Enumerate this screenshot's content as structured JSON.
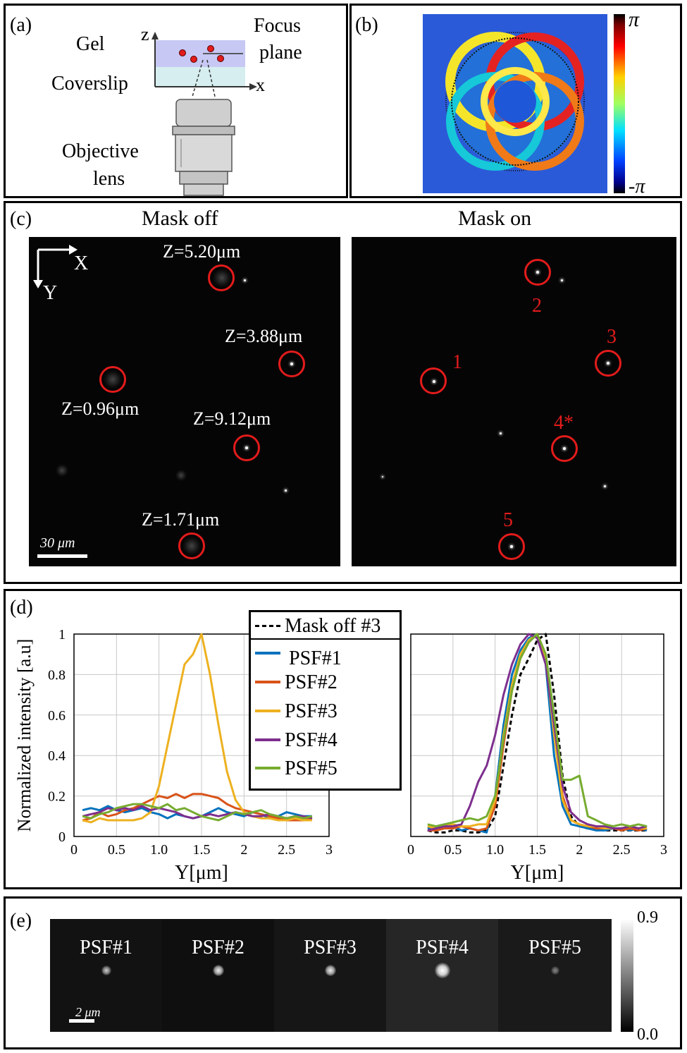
{
  "panels": {
    "a": {
      "label": "(a)",
      "gel": "Gel",
      "coverslip": "Coverslip",
      "objective_line1": "Objective",
      "objective_line2": "lens",
      "focus_line1": "Focus",
      "focus_line2": "plane",
      "axis_z": "z",
      "axis_x": "x"
    },
    "b": {
      "label": "(b)",
      "colorbar_max": "π",
      "colorbar_min": "-π"
    },
    "c": {
      "label": "(c)",
      "title_off": "Mask off",
      "title_on": "Mask on",
      "axis_x": "X",
      "axis_y": "Y",
      "scalebar": "30 μm",
      "depth_labels": [
        "Z=5.20μm",
        "Z=3.88μm",
        "Z=0.96μm",
        "Z=9.12μm",
        "Z=1.71μm"
      ],
      "psf_numbers": [
        "1",
        "2",
        "3",
        "4*",
        "5"
      ]
    },
    "d": {
      "label": "(d)",
      "legend": [
        "Mask off #3",
        "PSF#1",
        "PSF#2",
        "PSF#3",
        "PSF#4",
        "PSF#5"
      ]
    },
    "e": {
      "label": "(e)",
      "tiles": [
        "PSF#1",
        "PSF#2",
        "PSF#3",
        "PSF#4",
        "PSF#5"
      ],
      "scalebar": "2 μm",
      "colorbar_max": "0.9",
      "colorbar_min": "0.0"
    }
  },
  "colors": {
    "psf1": "#0072bd",
    "psf2": "#d95319",
    "psf3": "#edb120",
    "psf4": "#7e2f8e",
    "psf5": "#77ac30",
    "mask_off": "#000000",
    "marker": "#e31b1b"
  },
  "chart_data": [
    {
      "type": "line",
      "name": "Mask off",
      "xlabel": "Y[μm]",
      "ylabel": "Normalized intensity [a.u]",
      "xlim": [
        0,
        3
      ],
      "ylim": [
        0,
        1
      ],
      "xticks": [
        "0",
        "0.5",
        "1.0",
        "1.5",
        "2",
        "2.5",
        "3"
      ],
      "yticks": [
        "0",
        "0.2",
        "0.4",
        "0.6",
        "0.8",
        "1"
      ],
      "grid": true,
      "x": [
        0.1,
        0.2,
        0.3,
        0.4,
        0.5,
        0.6,
        0.7,
        0.8,
        0.9,
        1.0,
        1.1,
        1.2,
        1.3,
        1.4,
        1.5,
        1.6,
        1.7,
        1.8,
        1.9,
        2.0,
        2.1,
        2.2,
        2.3,
        2.4,
        2.5,
        2.6,
        2.7,
        2.8
      ],
      "series": [
        {
          "name": "PSF#1",
          "color_key": "psf1",
          "values": [
            0.13,
            0.14,
            0.13,
            0.15,
            0.13,
            0.12,
            0.13,
            0.14,
            0.12,
            0.11,
            0.09,
            0.11,
            0.1,
            0.09,
            0.1,
            0.12,
            0.14,
            0.12,
            0.11,
            0.1,
            0.12,
            0.11,
            0.09,
            0.1,
            0.12,
            0.11,
            0.1,
            0.1
          ]
        },
        {
          "name": "PSF#2",
          "color_key": "psf2",
          "values": [
            0.08,
            0.09,
            0.12,
            0.1,
            0.11,
            0.13,
            0.14,
            0.16,
            0.18,
            0.2,
            0.19,
            0.21,
            0.19,
            0.21,
            0.21,
            0.2,
            0.19,
            0.16,
            0.14,
            0.13,
            0.12,
            0.11,
            0.1,
            0.09,
            0.08,
            0.08,
            0.08,
            0.09
          ]
        },
        {
          "name": "PSF#3",
          "color_key": "psf3",
          "values": [
            0.08,
            0.07,
            0.09,
            0.08,
            0.08,
            0.08,
            0.08,
            0.09,
            0.12,
            0.25,
            0.45,
            0.65,
            0.85,
            0.9,
            1.0,
            0.8,
            0.55,
            0.32,
            0.18,
            0.12,
            0.1,
            0.09,
            0.09,
            0.08,
            0.08,
            0.09,
            0.08,
            0.08
          ]
        },
        {
          "name": "PSF#4",
          "color_key": "psf4",
          "values": [
            0.1,
            0.11,
            0.12,
            0.14,
            0.13,
            0.14,
            0.13,
            0.15,
            0.13,
            0.14,
            0.13,
            0.12,
            0.1,
            0.09,
            0.1,
            0.11,
            0.1,
            0.11,
            0.12,
            0.11,
            0.1,
            0.1,
            0.11,
            0.1,
            0.09,
            0.1,
            0.1,
            0.09
          ]
        },
        {
          "name": "PSF#5",
          "color_key": "psf5",
          "values": [
            0.1,
            0.09,
            0.11,
            0.12,
            0.14,
            0.15,
            0.16,
            0.16,
            0.15,
            0.14,
            0.16,
            0.13,
            0.14,
            0.12,
            0.1,
            0.09,
            0.08,
            0.1,
            0.12,
            0.11,
            0.12,
            0.13,
            0.11,
            0.1,
            0.09,
            0.1,
            0.09,
            0.1
          ]
        }
      ]
    },
    {
      "type": "line",
      "name": "Mask on",
      "xlabel": "Y[μm]",
      "ylabel": "",
      "xlim": [
        0,
        3
      ],
      "ylim": [
        0,
        1
      ],
      "xticks": [
        "0",
        "0.5",
        "1.0",
        "1.5",
        "2",
        "2.5",
        "3"
      ],
      "yticks": [],
      "grid": true,
      "x": [
        0.2,
        0.3,
        0.4,
        0.5,
        0.6,
        0.7,
        0.8,
        0.9,
        1.0,
        1.1,
        1.2,
        1.3,
        1.4,
        1.5,
        1.6,
        1.7,
        1.8,
        1.9,
        2.0,
        2.1,
        2.2,
        2.3,
        2.4,
        2.5,
        2.6,
        2.7,
        2.8
      ],
      "series": [
        {
          "name": "Mask off #3",
          "color_key": "mask_off",
          "dashed": true,
          "values": [
            0.03,
            0.02,
            0.02,
            0.03,
            0.03,
            0.02,
            0.02,
            0.03,
            0.1,
            0.35,
            0.6,
            0.8,
            0.88,
            0.97,
            1.0,
            0.7,
            0.3,
            0.1,
            0.05,
            0.04,
            0.04,
            0.03,
            0.03,
            0.03,
            0.03,
            0.03,
            0.03
          ]
        },
        {
          "name": "PSF#1",
          "color_key": "psf1",
          "values": [
            0.04,
            0.05,
            0.06,
            0.05,
            0.03,
            0.04,
            0.03,
            0.02,
            0.2,
            0.55,
            0.8,
            0.92,
            0.98,
            1.0,
            0.85,
            0.4,
            0.15,
            0.06,
            0.05,
            0.04,
            0.03,
            0.03,
            0.04,
            0.04,
            0.03,
            0.04,
            0.03
          ]
        },
        {
          "name": "PSF#2",
          "color_key": "psf2",
          "values": [
            0.03,
            0.03,
            0.04,
            0.04,
            0.05,
            0.04,
            0.03,
            0.04,
            0.15,
            0.45,
            0.72,
            0.88,
            0.96,
            1.0,
            0.9,
            0.55,
            0.2,
            0.08,
            0.06,
            0.05,
            0.04,
            0.04,
            0.04,
            0.03,
            0.04,
            0.03,
            0.04
          ]
        },
        {
          "name": "PSF#3",
          "color_key": "psf3",
          "values": [
            0.05,
            0.04,
            0.05,
            0.06,
            0.05,
            0.05,
            0.06,
            0.06,
            0.18,
            0.5,
            0.75,
            0.9,
            0.97,
            1.0,
            0.88,
            0.5,
            0.18,
            0.08,
            0.06,
            0.05,
            0.05,
            0.04,
            0.04,
            0.04,
            0.05,
            0.04,
            0.04
          ]
        },
        {
          "name": "PSF#4",
          "color_key": "psf4",
          "values": [
            0.03,
            0.04,
            0.05,
            0.05,
            0.06,
            0.15,
            0.27,
            0.35,
            0.5,
            0.7,
            0.85,
            0.95,
            1.0,
            0.98,
            0.85,
            0.55,
            0.25,
            0.12,
            0.08,
            0.06,
            0.05,
            0.05,
            0.04,
            0.04,
            0.05,
            0.04,
            0.05
          ]
        },
        {
          "name": "PSF#5",
          "color_key": "psf5",
          "values": [
            0.06,
            0.05,
            0.06,
            0.07,
            0.08,
            0.09,
            0.08,
            0.1,
            0.2,
            0.48,
            0.72,
            0.88,
            0.96,
            1.0,
            0.9,
            0.6,
            0.28,
            0.28,
            0.3,
            0.1,
            0.08,
            0.06,
            0.05,
            0.06,
            0.05,
            0.06,
            0.05
          ]
        }
      ]
    }
  ]
}
